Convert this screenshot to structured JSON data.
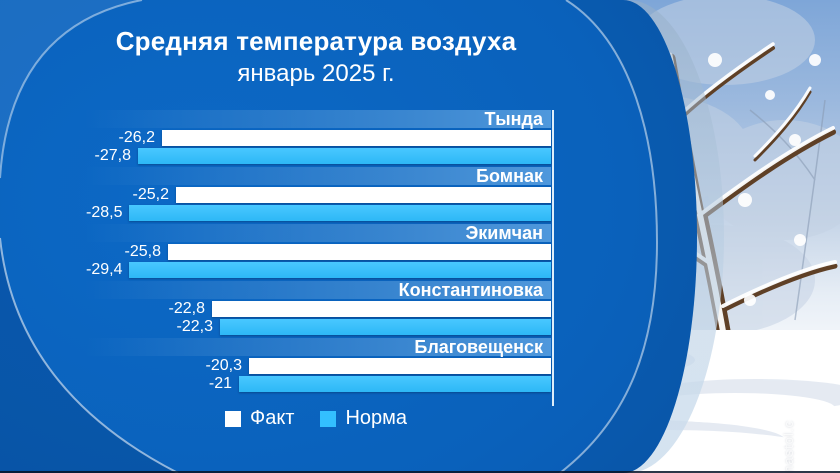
{
  "panel": {
    "title": "Средняя температура воздуха",
    "subtitle": "январь 2025 г."
  },
  "legend": {
    "fact": "Факт",
    "norma": "Норма"
  },
  "photo": {
    "watermark": "nastol.c"
  },
  "colors": {
    "panel_blue": "#0a61bb",
    "fact_bar": "#ffffff",
    "norma_bar": "#33bfff",
    "header_band": "#3f8ad2",
    "axis_line": "#ebf5fc",
    "title_text": "#ffffff"
  },
  "chart_data": {
    "type": "bar",
    "orientation": "horizontal, bars anchored to zero axis at right, extending left",
    "title": "Средняя температура воздуха",
    "subtitle": "январь 2025 г.",
    "unit": "°C",
    "categories": [
      "Тында",
      "Бомнак",
      "Экимчан",
      "Константиновка",
      "Благовещенск"
    ],
    "series": [
      {
        "name": "Факт",
        "color": "#ffffff",
        "values": [
          -26.2,
          -25.2,
          -25.8,
          -22.8,
          -20.3
        ],
        "labels": [
          "-26,2",
          "-25,2",
          "-25,8",
          "-22,8",
          "-20,3"
        ]
      },
      {
        "name": "Норма",
        "color": "#33bfff",
        "values": [
          -27.8,
          -28.5,
          -29.4,
          -22.3,
          -21
        ],
        "labels": [
          "-27,8",
          "-28,5",
          "-29,4",
          "-22,3",
          "-21"
        ]
      }
    ],
    "value_axis": {
      "zero_at": "right",
      "max_abs_value": 29.4,
      "gridlines": false,
      "tick_labels": "data labels at bar ends"
    },
    "legend_position": "bottom-center"
  }
}
